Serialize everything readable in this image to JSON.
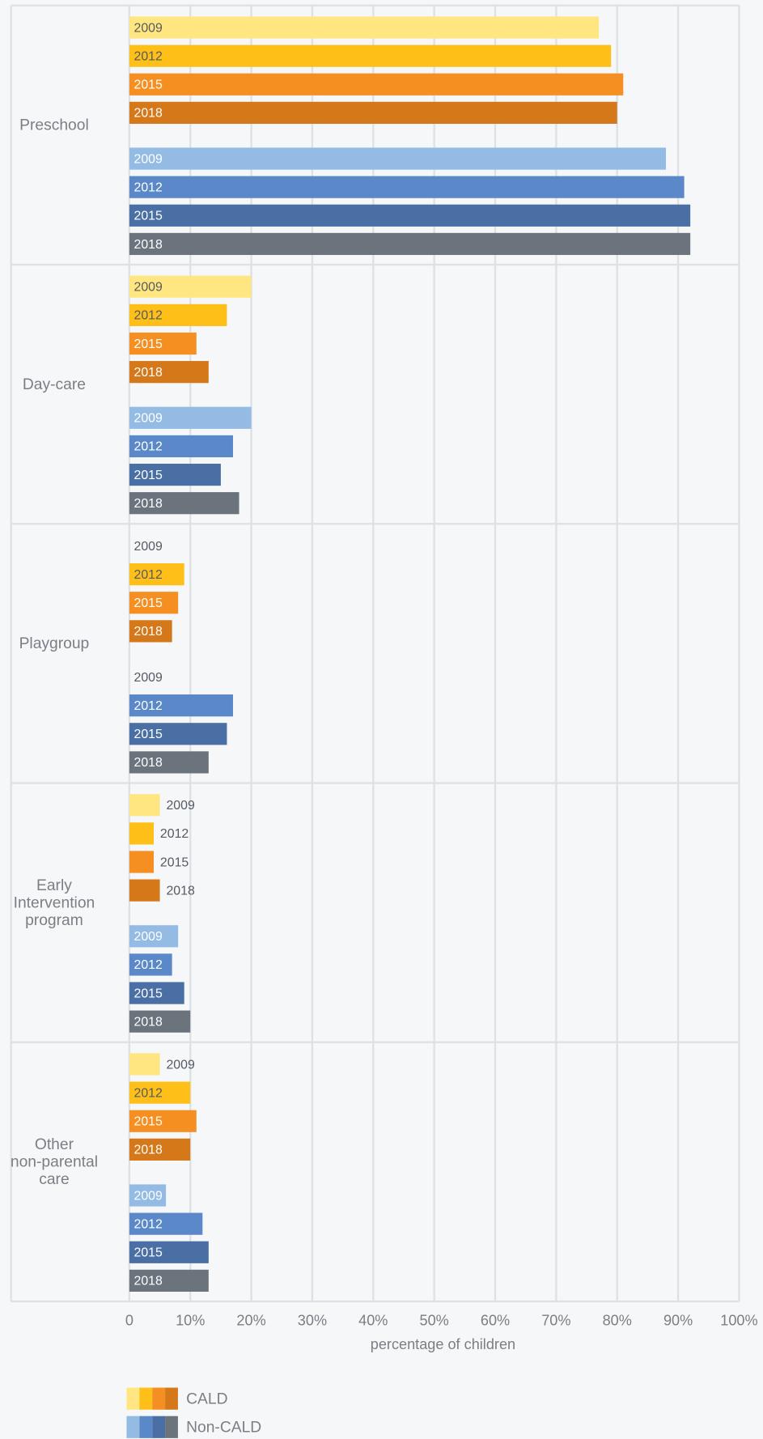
{
  "chart_data": {
    "type": "bar",
    "orientation": "horizontal",
    "categories": [
      "Preschool",
      "Day-care",
      "Playgroup",
      "Early Intervention program",
      "Other non-parental care"
    ],
    "xlabel": "percentage of children",
    "xlim": [
      0,
      100
    ],
    "xticks": [
      0,
      {
        "value": 10,
        "label": "10%"
      },
      {
        "value": 20,
        "label": "20%"
      },
      {
        "value": 30,
        "label": "30%"
      },
      {
        "value": 40,
        "label": "40%"
      },
      {
        "value": 50,
        "label": "50%"
      },
      {
        "value": 60,
        "label": "60%"
      },
      {
        "value": 70,
        "label": "70%"
      },
      {
        "value": 80,
        "label": "80%"
      },
      {
        "value": 90,
        "label": "90%"
      },
      {
        "value": 100,
        "label": "100%"
      }
    ],
    "grid": true,
    "groups": [
      {
        "name": "CALD",
        "series": [
          {
            "name": "2009",
            "color": "#ffe680",
            "values": [
              77,
              20,
              null,
              5,
              5
            ]
          },
          {
            "name": "2012",
            "color": "#fdbf18",
            "values": [
              79,
              16,
              9,
              4,
              10
            ]
          },
          {
            "name": "2015",
            "color": "#f58f22",
            "values": [
              81,
              11,
              8,
              4,
              11
            ]
          },
          {
            "name": "2018",
            "color": "#d4781a",
            "values": [
              80,
              13,
              7,
              5,
              10
            ]
          }
        ]
      },
      {
        "name": "Non-CALD",
        "series": [
          {
            "name": "2009",
            "color": "#93bbe4",
            "values": [
              88,
              20,
              null,
              8,
              6
            ]
          },
          {
            "name": "2012",
            "color": "#5b88c8",
            "values": [
              91,
              17,
              17,
              7,
              12
            ]
          },
          {
            "name": "2015",
            "color": "#4a6fa5",
            "values": [
              92,
              15,
              16,
              9,
              13
            ]
          },
          {
            "name": "2018",
            "color": "#6b737c",
            "values": [
              92,
              18,
              13,
              10,
              13
            ]
          }
        ]
      }
    ]
  }
}
